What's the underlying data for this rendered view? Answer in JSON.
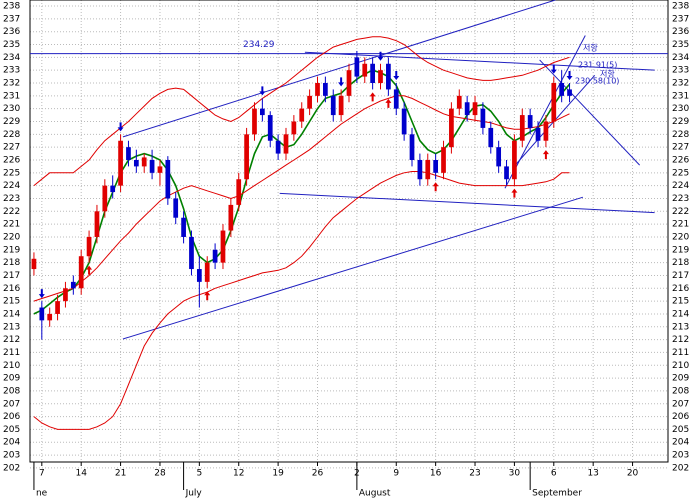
{
  "chart_data": {
    "type": "candlestick",
    "xlim": [
      -0.5,
      80.5
    ],
    "ylim": [
      202.46,
      238.47
    ],
    "yticks": [
      202,
      203,
      204,
      205,
      206,
      207,
      208,
      209,
      210,
      211,
      212,
      213,
      214,
      215,
      216,
      217,
      218,
      219,
      220,
      221,
      222,
      223,
      224,
      225,
      226,
      227,
      228,
      229,
      230,
      231,
      232,
      233,
      234,
      235,
      236,
      237,
      238
    ],
    "xticks": [
      {
        "value": 1,
        "label": "7"
      },
      {
        "value": 6,
        "label": "14"
      },
      {
        "value": 11,
        "label": "21"
      },
      {
        "value": 16,
        "label": "28"
      },
      {
        "value": 21,
        "label": "5"
      },
      {
        "value": 26,
        "label": "12"
      },
      {
        "value": 31,
        "label": "19"
      },
      {
        "value": 36,
        "label": "26"
      },
      {
        "value": 41,
        "label": "2"
      },
      {
        "value": 46,
        "label": "9"
      },
      {
        "value": 51,
        "label": "16"
      },
      {
        "value": 56,
        "label": "23"
      },
      {
        "value": 61,
        "label": "30"
      },
      {
        "value": 66,
        "label": "6"
      },
      {
        "value": 71,
        "label": "13"
      },
      {
        "value": 76,
        "label": "20"
      }
    ],
    "months": [
      {
        "value": 0,
        "label": "ne"
      },
      {
        "value": 19,
        "label": "July"
      },
      {
        "value": 41,
        "label": "August"
      },
      {
        "value": 63,
        "label": "September"
      }
    ],
    "grid": true,
    "up_color": "#e00000",
    "down_color": "#0000cc",
    "open": [
      217.5,
      214.5,
      213.5,
      214,
      215,
      216.5,
      216,
      218.5,
      220,
      222,
      224,
      224,
      227,
      226,
      225.5,
      226,
      225,
      226,
      223,
      221.5,
      220,
      217.5,
      216.5,
      219,
      218,
      220.5,
      222.5,
      224.5,
      228,
      230,
      229.5,
      227.5,
      226.5,
      228,
      229,
      230,
      231,
      232,
      231,
      229.5,
      231,
      234,
      232.5,
      233.5,
      232,
      233.5,
      231.5,
      230,
      228,
      226,
      224.5,
      226,
      225,
      227,
      230,
      230.5,
      229.5,
      230,
      228.5,
      227,
      225.5,
      224.5,
      227.5,
      229.5,
      228.5,
      227.5,
      229,
      232,
      231.5
    ],
    "high": [
      218.8,
      215,
      214.5,
      215.5,
      216.5,
      217,
      219,
      220.5,
      222.5,
      224.5,
      224.8,
      228,
      227.5,
      226.8,
      226.5,
      226.8,
      226,
      226.3,
      223.5,
      222,
      220.5,
      218.5,
      218.5,
      219.5,
      221,
      223,
      225,
      228.5,
      230.5,
      230.8,
      229.8,
      228,
      228.5,
      229.5,
      230.5,
      231.5,
      232.5,
      232.5,
      231.5,
      231.5,
      233.5,
      234.5,
      234,
      234,
      233.5,
      234,
      232,
      230.5,
      228.5,
      226.5,
      226.5,
      226.5,
      227.5,
      230.5,
      231.5,
      231,
      231,
      230.5,
      229,
      227.5,
      226,
      228,
      230,
      230,
      229,
      229.5,
      232.5,
      233,
      232
    ],
    "low": [
      217,
      212,
      213,
      213.5,
      214.5,
      215.5,
      215.5,
      218,
      219.5,
      221.5,
      223,
      223.5,
      225.5,
      225,
      225,
      224.5,
      224,
      222.5,
      221,
      219.5,
      217,
      214.5,
      216,
      217.5,
      217.5,
      220,
      222,
      224,
      227.5,
      229,
      227,
      226,
      226,
      227.5,
      228.5,
      229.5,
      230.5,
      230.5,
      229,
      229,
      230.5,
      232,
      232,
      231.5,
      231.5,
      231,
      229.5,
      227.5,
      225.5,
      224,
      224,
      224.5,
      224.5,
      226.5,
      229.5,
      229,
      229,
      228,
      226.5,
      225,
      224,
      224,
      227,
      228,
      227,
      227,
      228.5,
      230.5,
      230.5
    ],
    "close": [
      218.3,
      213.5,
      214,
      215,
      216,
      216,
      218.5,
      220,
      222,
      224,
      223.5,
      227.5,
      226,
      225.5,
      226.2,
      225,
      225.5,
      223,
      221.5,
      220,
      217.5,
      216.5,
      218,
      218,
      220.5,
      222.5,
      224.5,
      228,
      230,
      229.5,
      227.5,
      226.5,
      228,
      229,
      230,
      231,
      232,
      231,
      229.5,
      231,
      233,
      232.5,
      233.5,
      232,
      233,
      231.5,
      230,
      228,
      226,
      224.5,
      226,
      225,
      227,
      230,
      231,
      229.5,
      230.5,
      228.5,
      227,
      225.5,
      224.5,
      227.5,
      229.5,
      228.5,
      227.5,
      229,
      232,
      231,
      231
    ],
    "series": [
      {
        "color": "#008000",
        "values": [
          214,
          214.3,
          214.8,
          215.3,
          215.7,
          216,
          216.8,
          218,
          220,
          222,
          223.5,
          225,
          226,
          226.3,
          226.5,
          226.3,
          226,
          225.2,
          224,
          222.2,
          220,
          218.5,
          218,
          218.3,
          219,
          220.5,
          222.3,
          224.5,
          226.5,
          227.8,
          228,
          227.5,
          227,
          227.2,
          228,
          229,
          230,
          230.8,
          231,
          231.2,
          231.8,
          232.3,
          232.7,
          233,
          232.8,
          232.5,
          231.8,
          230.5,
          229,
          227.5,
          226.8,
          226.5,
          226.8,
          227.5,
          228.5,
          229.5,
          230.2,
          230.3,
          229.8,
          229,
          228,
          227.5,
          227.8,
          228.2,
          228.5,
          229.3,
          230.3,
          231.2,
          231.9
        ]
      },
      {
        "color": "#e00000",
        "values": [
          215,
          215.2,
          215.4,
          215.6,
          215.8,
          216,
          216.5,
          217,
          217.6,
          218.3,
          219,
          219.7,
          220.3,
          221,
          221.6,
          222.2,
          222.8,
          223.2,
          223.5,
          223.8,
          224,
          223.8,
          223.6,
          223.4,
          223.2,
          223,
          223.2,
          223.6,
          224,
          224.4,
          224.8,
          225.2,
          225.6,
          226,
          226.4,
          226.8,
          227.3,
          227.8,
          228.3,
          228.8,
          229.2,
          229.6,
          230,
          230.3,
          230.6,
          230.8,
          231,
          231,
          230.8,
          230.5,
          230.2,
          229.9,
          229.6,
          229.4,
          229.3,
          229.2,
          229.1,
          229,
          228.9,
          228.7,
          228.5,
          228.4,
          228.4,
          228.5,
          228.6,
          228.8,
          229,
          229.3,
          229.6
        ]
      },
      {
        "color": "#e00000",
        "values": [
          224,
          224.5,
          225,
          225,
          225,
          225,
          225.5,
          226,
          226.8,
          227.5,
          228,
          228.5,
          229,
          229.6,
          230.2,
          230.8,
          231.2,
          231.5,
          231.6,
          231.5,
          231,
          230.5,
          230,
          229.5,
          229.2,
          229,
          229.3,
          229.8,
          230.3,
          230.8,
          231.2,
          231.6,
          232,
          232.5,
          233,
          233.5,
          234,
          234.4,
          234.8,
          235,
          235.2,
          235.4,
          235.5,
          235.6,
          235.6,
          235.5,
          235.3,
          235,
          234.5,
          234,
          233.6,
          233.3,
          233,
          232.8,
          232.6,
          232.4,
          232.3,
          232.2,
          232.2,
          232.3,
          232.4,
          232.5,
          232.6,
          232.8,
          233,
          233.3,
          233.6,
          233.8,
          234
        ]
      },
      {
        "color": "#e00000",
        "values": [
          206,
          205.5,
          205.2,
          205,
          205,
          205,
          205,
          205,
          205.2,
          205.5,
          206,
          207,
          208.5,
          210,
          211.5,
          212.5,
          213.3,
          214,
          214.5,
          215,
          215.3,
          215.5,
          215.7,
          216,
          216.2,
          216.4,
          216.6,
          216.8,
          217,
          217.2,
          217.3,
          217.4,
          217.6,
          218,
          218.5,
          219.2,
          220,
          220.8,
          221.5,
          222,
          222.5,
          223,
          223.4,
          223.8,
          224.2,
          224.5,
          224.8,
          225,
          225.1,
          225.1,
          225,
          224.8,
          224.6,
          224.4,
          224.2,
          224.1,
          224,
          224,
          224,
          224,
          224,
          224,
          224,
          224.1,
          224.2,
          224.3,
          224.5,
          225,
          225
        ]
      }
    ],
    "trend_color": "#2020c0",
    "trendlines": [
      {
        "from": [
          11.3,
          227.8
        ],
        "to": [
          66.2,
          238.47
        ]
      },
      {
        "from": [
          11.3,
          212.05
        ],
        "to": [
          69.7,
          223.1
        ]
      },
      {
        "from": [
          34.4,
          234.4
        ],
        "to": [
          78.8,
          233.0
        ]
      },
      {
        "from": [
          31.2,
          223.4
        ],
        "to": [
          78.8,
          221.9
        ]
      },
      {
        "from": [
          59.8,
          223.8
        ],
        "to": [
          70,
          235.7
        ]
      },
      {
        "from": [
          61.1,
          225.6
        ],
        "to": [
          71.2,
          232.6
        ]
      },
      {
        "from": [
          64.2,
          233.8
        ],
        "to": [
          76.9,
          225.6
        ]
      }
    ],
    "resistance": 234.29,
    "sell_signals": [
      1,
      11,
      29,
      39,
      44,
      46,
      66,
      68
    ],
    "buy_signals": [
      7,
      22,
      43,
      45,
      51,
      61,
      65
    ],
    "annotations": [
      "231.91(5)",
      "230.58(10)",
      "저항",
      "저항"
    ]
  }
}
